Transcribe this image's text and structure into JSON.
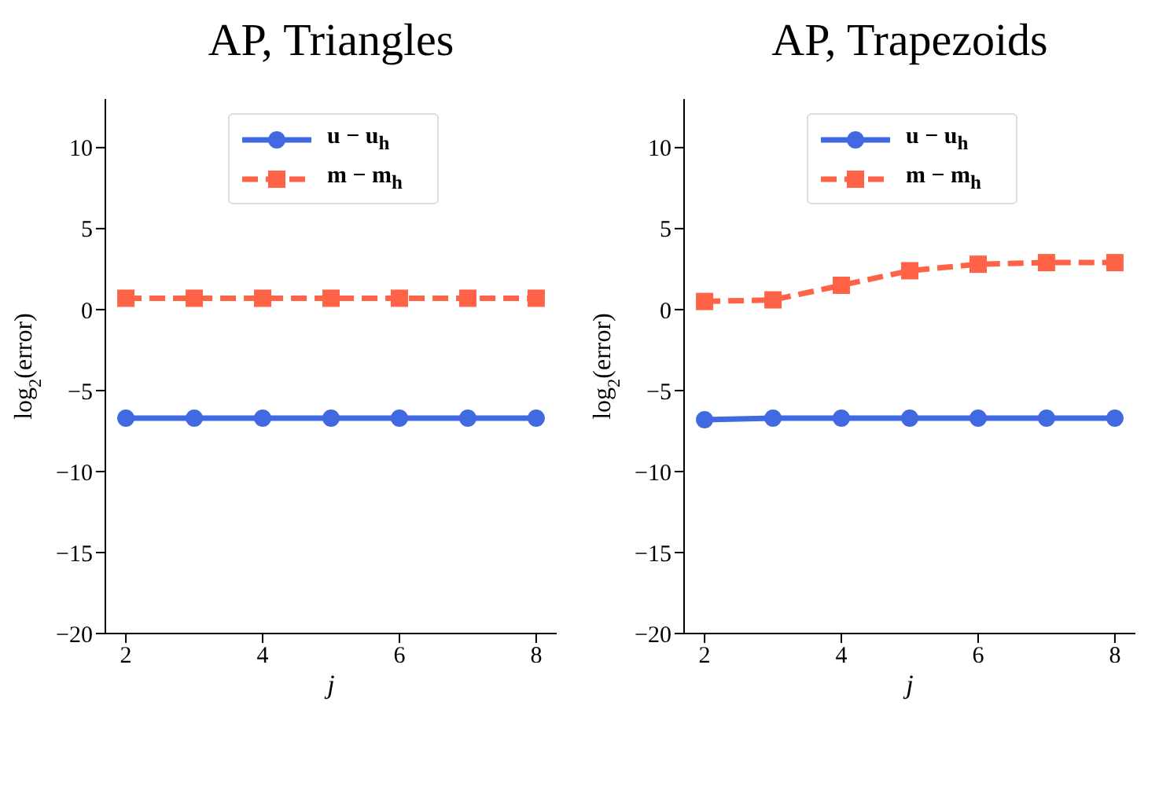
{
  "chart_data": [
    {
      "type": "line",
      "title": "AP, Triangles",
      "xlabel": "j",
      "ylabel": "log$_{2}$(error)",
      "x": [
        2,
        3,
        4,
        5,
        6,
        7,
        8
      ],
      "xlim": [
        1.7,
        8.3
      ],
      "xticks": [
        2,
        4,
        6,
        8
      ],
      "ylim": [
        -20,
        13
      ],
      "yticks": [
        -20,
        -15,
        -10,
        -5,
        0,
        5,
        10
      ],
      "legend": "top",
      "grid": false,
      "series": [
        {
          "name": "u − u$_{h}$",
          "color": "#4169e1",
          "marker": "circle",
          "line_style": "solid",
          "values": [
            -6.7,
            -6.7,
            -6.7,
            -6.7,
            -6.7,
            -6.7,
            -6.7
          ]
        },
        {
          "name": "m − m$_{h}$",
          "color": "#ff6347",
          "marker": "square",
          "line_style": "dashed",
          "values": [
            0.7,
            0.7,
            0.7,
            0.7,
            0.7,
            0.7,
            0.7
          ]
        }
      ]
    },
    {
      "type": "line",
      "title": "AP, Trapezoids",
      "xlabel": "j",
      "ylabel": "log$_{2}$(error)",
      "x": [
        2,
        3,
        4,
        5,
        6,
        7,
        8
      ],
      "xlim": [
        1.7,
        8.3
      ],
      "xticks": [
        2,
        4,
        6,
        8
      ],
      "ylim": [
        -20,
        13
      ],
      "yticks": [
        -20,
        -15,
        -10,
        -5,
        0,
        5,
        10
      ],
      "legend": "top",
      "grid": false,
      "series": [
        {
          "name": "u − u$_{h}$",
          "color": "#4169e1",
          "marker": "circle",
          "line_style": "solid",
          "values": [
            -6.8,
            -6.7,
            -6.7,
            -6.7,
            -6.7,
            -6.7,
            -6.7
          ]
        },
        {
          "name": "m − m$_{h}$",
          "color": "#ff6347",
          "marker": "square",
          "line_style": "dashed",
          "values": [
            0.5,
            0.6,
            1.5,
            2.4,
            2.8,
            2.9,
            2.9
          ]
        }
      ]
    }
  ]
}
